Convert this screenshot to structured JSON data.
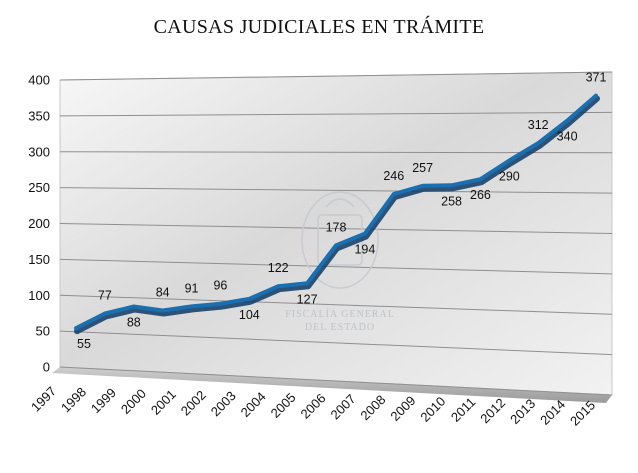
{
  "chart_data": {
    "type": "line",
    "title": "CAUSAS JUDICIALES EN TRÁMITE",
    "xlabel": "",
    "ylabel": "",
    "categories": [
      "1997",
      "1998",
      "1999",
      "2000",
      "2001",
      "2002",
      "2003",
      "2004",
      "2005",
      "2006",
      "2007",
      "2008",
      "2009",
      "2010",
      "2011",
      "2012",
      "2013",
      "2014",
      "2015"
    ],
    "series": [
      {
        "values": [
          55,
          77,
          88,
          84,
          91,
          96,
          104,
          122,
          127,
          178,
          194,
          246,
          257,
          258,
          266,
          290,
          312,
          340,
          371
        ]
      }
    ],
    "data_labels": [
      "55",
      "77",
      "88",
      "84",
      "91",
      "96",
      "104",
      "122",
      "127",
      "178",
      "194",
      "246",
      "257",
      "258",
      "266",
      "290",
      "312",
      "340",
      "371"
    ],
    "ylim": [
      0,
      400
    ],
    "yticks": [
      0,
      50,
      100,
      150,
      200,
      250,
      300,
      350,
      400
    ],
    "grid": true,
    "legend": "none",
    "line_color": "#1a6fb0",
    "line_shadow_color": "#0d3a66"
  },
  "watermark": {
    "line1": "FISCALÍA GENERAL",
    "line2": "DEL ESTADO"
  }
}
